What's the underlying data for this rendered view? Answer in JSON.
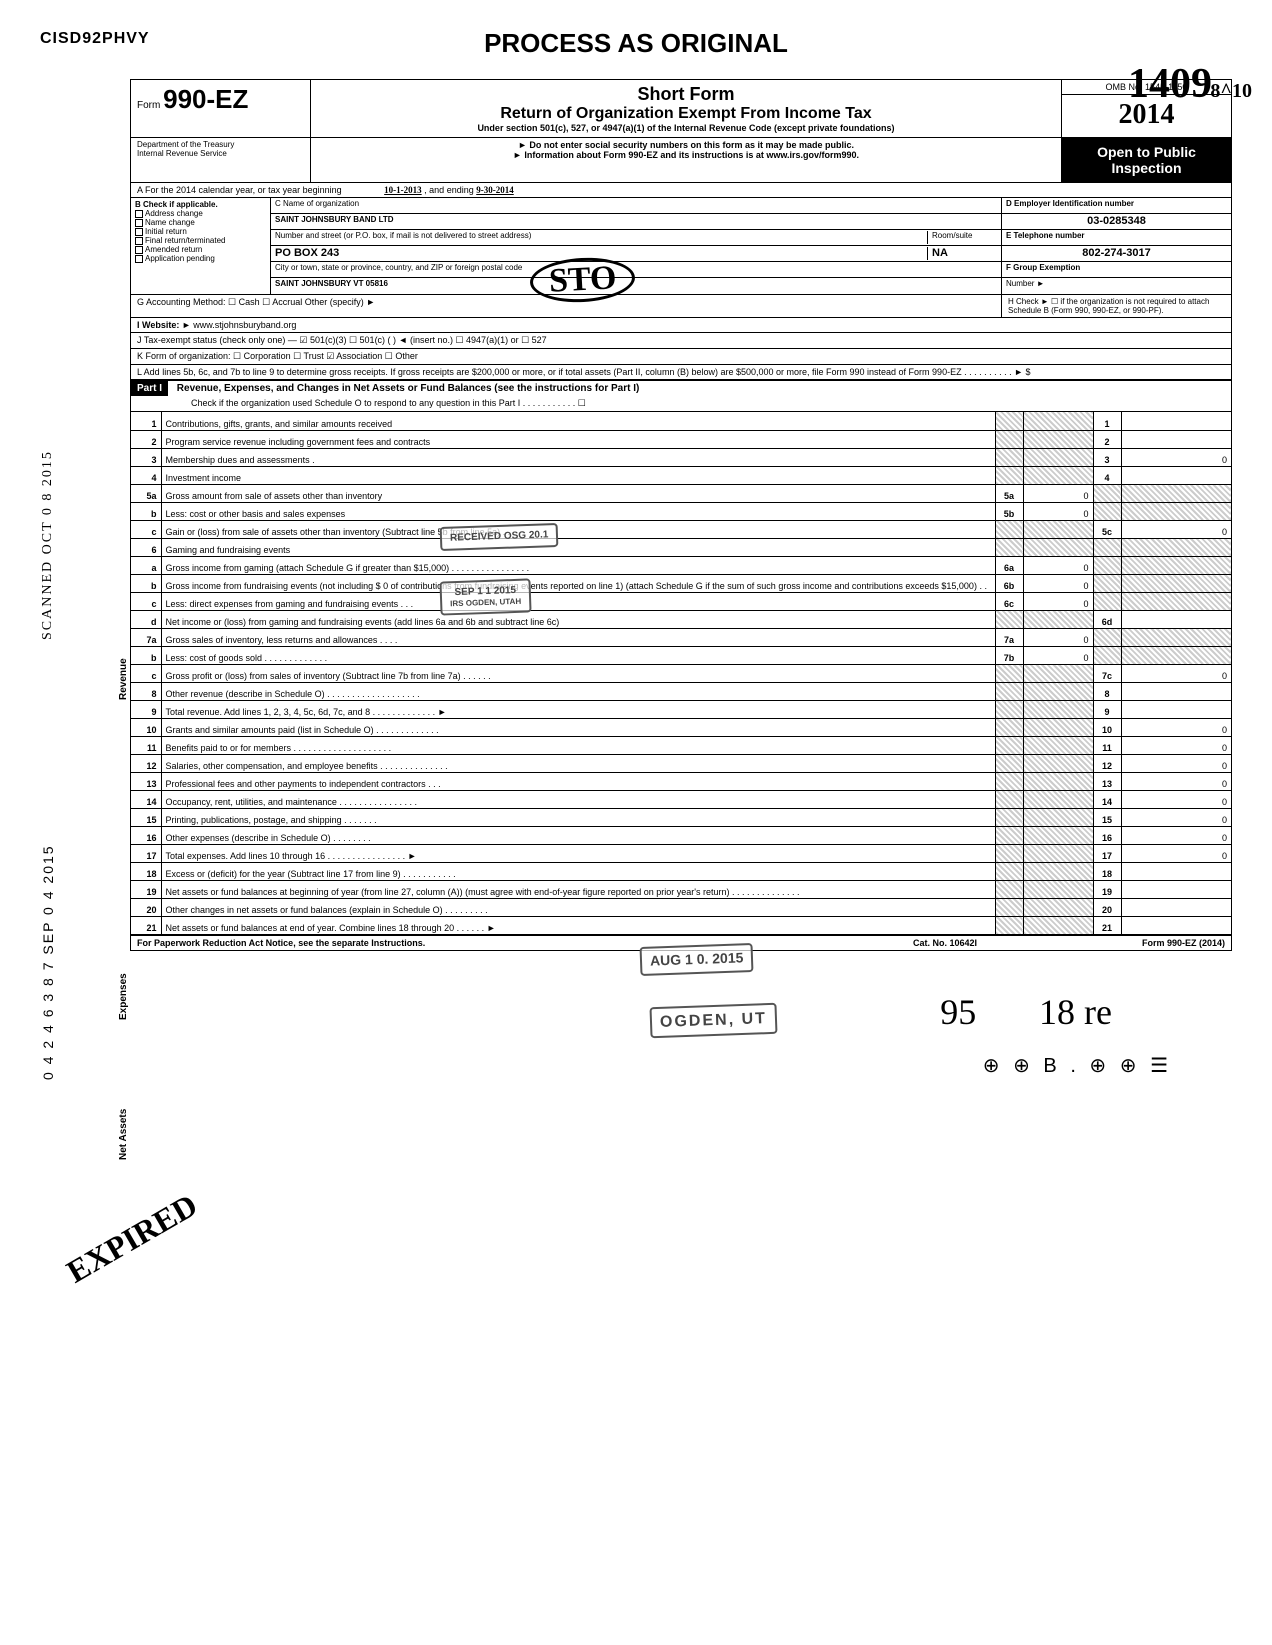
{
  "doc_code": "CISD92PHVY",
  "process_header": "PROCESS AS ORIGINAL",
  "handwritten_year": "1409",
  "handwritten_pages": "8^10",
  "form": {
    "prefix": "Form",
    "number": "990-EZ",
    "short_form": "Short Form",
    "title": "Return of Organization Exempt From Income Tax",
    "subtitle": "Under section 501(c), 527, or 4947(a)(1) of the Internal Revenue Code (except private foundations)",
    "omb": "OMB No. 1545-1150",
    "year": "2014",
    "year_prefix": "20",
    "year_suffix": "14",
    "warn1": "► Do not enter social security numbers on this form as it may be made public.",
    "warn2": "► Information about Form 990-EZ and its instructions is at www.irs.gov/form990.",
    "dept": "Department of the Treasury",
    "irs": "Internal Revenue Service",
    "open_public": "Open to Public",
    "inspection": "Inspection"
  },
  "period": {
    "label": "A For the 2014 calendar year, or tax year beginning",
    "begin": "10-1-2013",
    "mid": ", and ending",
    "end": "9-30-2014"
  },
  "box_b": {
    "header": "B Check if applicable.",
    "items": [
      "Address change",
      "Name change",
      "Initial return",
      "Final return/terminated",
      "Amended return",
      "Application pending"
    ]
  },
  "box_c": {
    "label": "C Name of organization",
    "name": "SAINT JOHNSBURY BAND LTD",
    "addr_label": "Number and street (or P.O. box, if mail is not delivered to street address)",
    "addr": "PO BOX 243",
    "city_label": "City or town, state or province, country, and ZIP or foreign postal code",
    "city": "SAINT JOHNSBURY VT 05816",
    "room_label": "Room/suite",
    "room": "NA"
  },
  "box_d": {
    "label": "D Employer Identification number",
    "val": "03-0285348"
  },
  "box_e": {
    "label": "E Telephone number",
    "val": "802-274-3017"
  },
  "box_f": {
    "label": "F Group Exemption",
    "sub": "Number ►"
  },
  "line_g": "G Accounting Method:   ☐ Cash   ☐ Accrual   Other (specify) ►",
  "line_h": "H Check ► ☐ if the organization is not required to attach Schedule B (Form 990, 990-EZ, or 990-PF).",
  "line_i": {
    "label": "I  Website: ►",
    "val": "www.stjohnsburyband.org"
  },
  "line_j": "J Tax-exempt status (check only one) — ☑ 501(c)(3)   ☐ 501(c) (      ) ◄ (insert no.)  ☐ 4947(a)(1) or   ☐ 527",
  "line_k": "K Form of organization:   ☐ Corporation     ☐ Trust            ☑ Association        ☐ Other",
  "line_l": "L Add lines 5b, 6c, and 7b to line 9 to determine gross receipts. If gross receipts are $200,000 or more, or if total assets (Part II, column (B) below) are $500,000 or more, file Form 990 instead of Form 990-EZ .  .  .  .  .  .  .  .  .  .  ►  $",
  "part1": {
    "label": "Part I",
    "title": "Revenue, Expenses, and Changes in Net Assets or Fund Balances (see the instructions for Part I)",
    "check": "Check if the organization used Schedule O to respond to any question in this Part I .  .  .  .  .  .  .  .  .  .  .  ☐"
  },
  "stamps": {
    "received": "RECEIVED OSG 20.1",
    "sep": "SEP 1 1 2015",
    "ogden": "IRS OGDEN, UTAH",
    "aug": "AUG 1 0. 2015",
    "ogden_ut": "OGDEN, UT",
    "sto": "STO"
  },
  "rows": [
    {
      "n": "1",
      "d": "Contributions, gifts, grants, and similar amounts received",
      "rn": "1",
      "rv": ""
    },
    {
      "n": "2",
      "d": "Program service revenue including government fees and contracts",
      "rn": "2",
      "rv": ""
    },
    {
      "n": "3",
      "d": "Membership dues and assessments .",
      "rn": "3",
      "rv": "0"
    },
    {
      "n": "4",
      "d": "Investment income",
      "rn": "4",
      "rv": ""
    },
    {
      "n": "5a",
      "d": "Gross amount from sale of assets other than inventory",
      "mn": "5a",
      "mv": "0"
    },
    {
      "n": "b",
      "d": "Less: cost or other basis and sales expenses",
      "mn": "5b",
      "mv": "0"
    },
    {
      "n": "c",
      "d": "Gain or (loss) from sale of assets other than inventory (Subtract line 5b from line 5a)  .  .  .",
      "rn": "5c",
      "rv": "0"
    },
    {
      "n": "6",
      "d": "Gaming and fundraising events"
    },
    {
      "n": "a",
      "d": "Gross income from gaming (attach Schedule G if greater than $15,000)  .  .  .  .  .  .  .  .  .  .  .  .  .  .  .  .",
      "mn": "6a",
      "mv": "0"
    },
    {
      "n": "b",
      "d": "Gross income from fundraising events (not including  $                     0 of contributions from fundraising events reported on line 1) (attach Schedule G if the sum of such gross income and contributions exceeds $15,000)  .  .",
      "mn": "6b",
      "mv": "0"
    },
    {
      "n": "c",
      "d": "Less: direct expenses from gaming and fundraising events   .  .  .",
      "mn": "6c",
      "mv": "0"
    },
    {
      "n": "d",
      "d": "Net income or (loss) from gaming and fundraising events (add lines 6a and 6b and subtract line 6c)",
      "rn": "6d",
      "rv": ""
    },
    {
      "n": "7a",
      "d": "Gross sales of inventory, less returns and allowances  .  .  .  .",
      "mn": "7a",
      "mv": "0"
    },
    {
      "n": "b",
      "d": "Less: cost of goods sold     .  .  .  .  .  .  .  .  .  .  .  .  .",
      "mn": "7b",
      "mv": "0"
    },
    {
      "n": "c",
      "d": "Gross profit or (loss) from sales of inventory (Subtract line 7b from line 7a)  .  .  .  .  .  .",
      "rn": "7c",
      "rv": "0"
    },
    {
      "n": "8",
      "d": "Other revenue (describe in Schedule O) .  .  .  .  .  .  .  .  .  .  .  .  .  .  .  .  .  .  .",
      "rn": "8",
      "rv": ""
    },
    {
      "n": "9",
      "d": "Total revenue. Add lines 1, 2, 3, 4, 5c, 6d, 7c, and 8   .  .  .  .  .  .  .  .  .  .  .  .  .  ►",
      "rn": "9",
      "rv": ""
    },
    {
      "n": "10",
      "d": "Grants and similar amounts paid (list in Schedule O)   .  .  .  .  .  .  .  .  .  .  .  .  .",
      "rn": "10",
      "rv": "0"
    },
    {
      "n": "11",
      "d": "Benefits paid to or for members   .  .  .  .  .  .  .  .  .  .  .  .  .  .  .  .  .  .  .  .",
      "rn": "11",
      "rv": "0"
    },
    {
      "n": "12",
      "d": "Salaries, other compensation, and employee benefits .  .  .  .  .  .  .  .  .  .  .  .  .  .",
      "rn": "12",
      "rv": "0"
    },
    {
      "n": "13",
      "d": "Professional fees and other payments to independent contractors .  .  .",
      "rn": "13",
      "rv": "0"
    },
    {
      "n": "14",
      "d": "Occupancy, rent, utilities, and maintenance    .  .  .  .  .  .  .  .  .  .  .  .  .  .  .  .",
      "rn": "14",
      "rv": "0"
    },
    {
      "n": "15",
      "d": "Printing, publications, postage, and shipping .  .  .  .  .  .  .",
      "rn": "15",
      "rv": "0"
    },
    {
      "n": "16",
      "d": "Other expenses (describe in Schedule O)  .  .  .  .  .  .  .  .",
      "rn": "16",
      "rv": "0"
    },
    {
      "n": "17",
      "d": "Total expenses. Add lines 10 through 16   .  .  .  .  .  .  .  .  .  .  .  .  .  .  .  .  ►",
      "rn": "17",
      "rv": "0"
    },
    {
      "n": "18",
      "d": "Excess or (deficit) for the year (Subtract line 17 from line 9)    .  .  .  .  .  .  .  .  .  .  .",
      "rn": "18",
      "rv": ""
    },
    {
      "n": "19",
      "d": "Net assets or fund balances at beginning of year (from line 27, column (A)) (must agree with end-of-year figure reported on prior year's return)     .  .  .  .  .  .  .  .  .  .  .  .  .  .",
      "rn": "19",
      "rv": ""
    },
    {
      "n": "20",
      "d": "Other changes in net assets or fund balances (explain in Schedule O) .  .  .  .  .  .  .  .  .",
      "rn": "20",
      "rv": ""
    },
    {
      "n": "21",
      "d": "Net assets or fund balances at end of year. Combine lines 18 through 20    .  .  .  .  .  .  ►",
      "rn": "21",
      "rv": ""
    }
  ],
  "footer": {
    "left": "For Paperwork Reduction Act Notice, see the separate Instructions.",
    "mid": "Cat. No. 10642I",
    "right": "Form 990-EZ (2014)"
  },
  "side": {
    "revenue": "Revenue",
    "expenses": "Expenses",
    "netassets": "Net Assets"
  },
  "vert_stamps": {
    "scanned": "SCANNED OCT 0 8 2015",
    "date": "0 4 2 4 6 3 8 7   SEP 0 4 2015"
  },
  "bottom_hw": {
    "a": "95",
    "b": "18 re"
  },
  "seals": "⊕ ⊕ B . ⊕ ⊕ ☰",
  "expired_stamp": "EXPIRED"
}
